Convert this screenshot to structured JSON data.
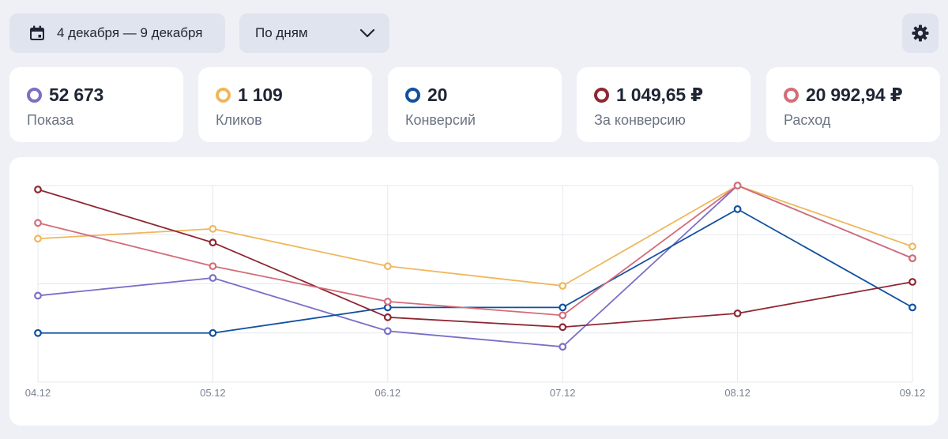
{
  "toolbar": {
    "date_range": "4 декабря — 9 декабря",
    "period": "По дням"
  },
  "metrics": [
    {
      "value": "52 673",
      "label": "Показа",
      "color": "#7a6fc7"
    },
    {
      "value": "1 109",
      "label": "Кликов",
      "color": "#efb75c"
    },
    {
      "value": "20",
      "label": "Конверсий",
      "color": "#1150a0"
    },
    {
      "value": "1 049,65 ₽",
      "label": "За конверсию",
      "color": "#8e2732"
    },
    {
      "value": "20 992,94 ₽",
      "label": "Расход",
      "color": "#d46c78"
    }
  ],
  "chart_data": {
    "type": "line",
    "x": [
      "04.12",
      "05.12",
      "06.12",
      "07.12",
      "08.12",
      "09.12"
    ],
    "ylim": [
      0,
      100
    ],
    "grid": true,
    "series": [
      {
        "name": "Показа",
        "color": "#7a6fc7",
        "values": [
          44,
          53,
          26,
          18,
          100,
          63
        ]
      },
      {
        "name": "Кликов",
        "color": "#efb75c",
        "values": [
          73,
          78,
          59,
          49,
          100,
          69
        ]
      },
      {
        "name": "Конверсий",
        "color": "#1150a0",
        "values": [
          25,
          25,
          38,
          38,
          88,
          38
        ]
      },
      {
        "name": "За конверсию",
        "color": "#8e2732",
        "values": [
          98,
          71,
          33,
          28,
          35,
          51
        ]
      },
      {
        "name": "Расход",
        "color": "#d46c78",
        "values": [
          81,
          59,
          41,
          34,
          100,
          63
        ]
      }
    ]
  }
}
